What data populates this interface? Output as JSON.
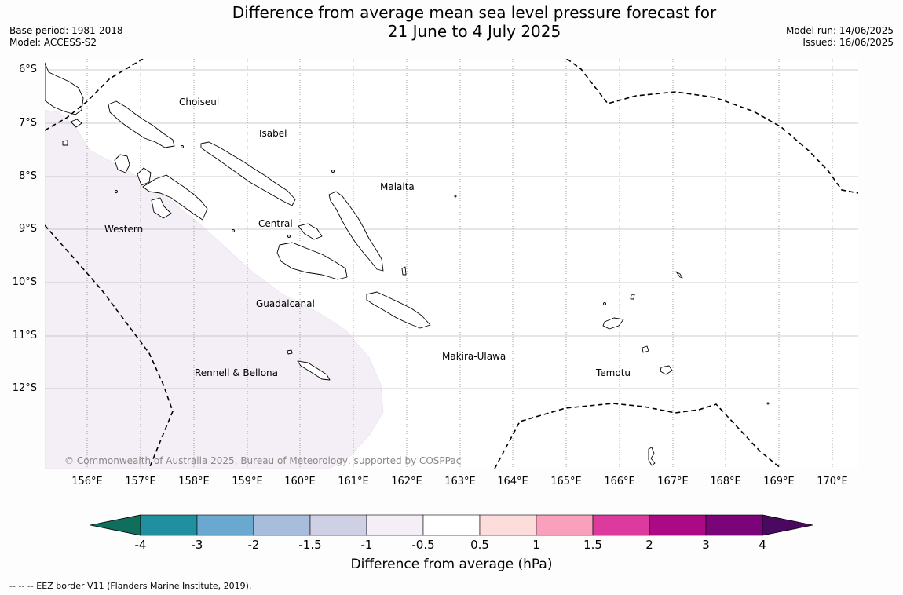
{
  "header": {
    "title_line1": "Difference from average mean sea level pressure forecast for",
    "title_line2": "21 June to 4 July 2025",
    "base_period": "Base period: 1981-2018",
    "model": "Model: ACCESS-S2",
    "model_run": "Model run: 14/06/2025",
    "issued": "Issued: 16/06/2025"
  },
  "map": {
    "lat_labels": [
      "6°S",
      "7°S",
      "8°S",
      "9°S",
      "10°S",
      "11°S",
      "12°S"
    ],
    "lon_labels": [
      "156°E",
      "157°E",
      "158°E",
      "159°E",
      "160°E",
      "161°E",
      "162°E",
      "163°E",
      "164°E",
      "165°E",
      "166°E",
      "167°E",
      "168°E",
      "169°E",
      "170°E"
    ],
    "regions": [
      "Choiseul",
      "Isabel",
      "Malaita",
      "Western",
      "Central",
      "Guadalcanal",
      "Rennell & Bellona",
      "Makira-Ulawa",
      "Temotu"
    ],
    "shaded_category": "-1 to -0.5",
    "copyright": "© Commonwealth of Australia 2025, Bureau of Meteorology, supported by COSPPac"
  },
  "colorbar": {
    "labels": [
      "-4",
      "-3",
      "-2",
      "-1.5",
      "-1",
      "-0.5",
      "0.5",
      "1",
      "1.5",
      "2",
      "3",
      "4"
    ],
    "colors": [
      "#0f6e5c",
      "#2090a0",
      "#6aa8d0",
      "#a8bcdc",
      "#d0d0e4",
      "#f4eef6",
      "#ffffff",
      "#fddcdc",
      "#f8a0bc",
      "#dc3a9c",
      "#ac0a84",
      "#7a0478",
      "#4a0860"
    ],
    "title": "Difference from average (hPa)"
  },
  "footnote": "--  --  -- EEZ border V11 (Flanders Marine Institute, 2019)."
}
